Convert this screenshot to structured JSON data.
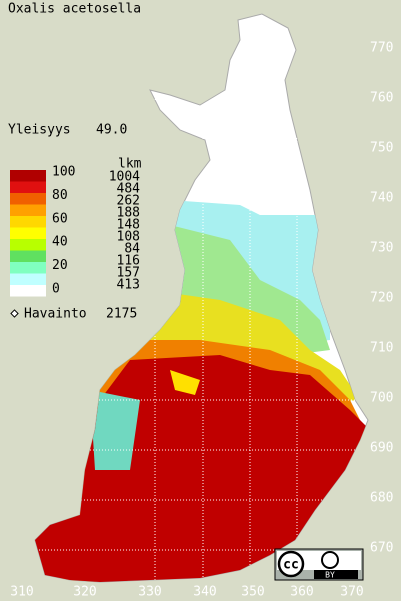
{
  "title": "Oxalis acetosella",
  "frequency": {
    "label": "Yleisyys",
    "value": "49.0"
  },
  "legend": {
    "scale_labels": [
      "100",
      "80",
      "60",
      "40",
      "20",
      "0"
    ],
    "count_header": "lkm",
    "counts": [
      "1004",
      "484",
      "262",
      "188",
      "148",
      "108",
      "84",
      "116",
      "157",
      "413"
    ]
  },
  "observations": {
    "label": "Havainto",
    "value": "2175"
  },
  "x_axis_labels": [
    "310",
    "320",
    "330",
    "340",
    "350",
    "360",
    "370"
  ],
  "y_axis_labels": [
    "770",
    "760",
    "750",
    "740",
    "730",
    "720",
    "710",
    "700",
    "690",
    "680",
    "670"
  ],
  "badge": {
    "license": "cc",
    "attribution": "BY"
  }
}
